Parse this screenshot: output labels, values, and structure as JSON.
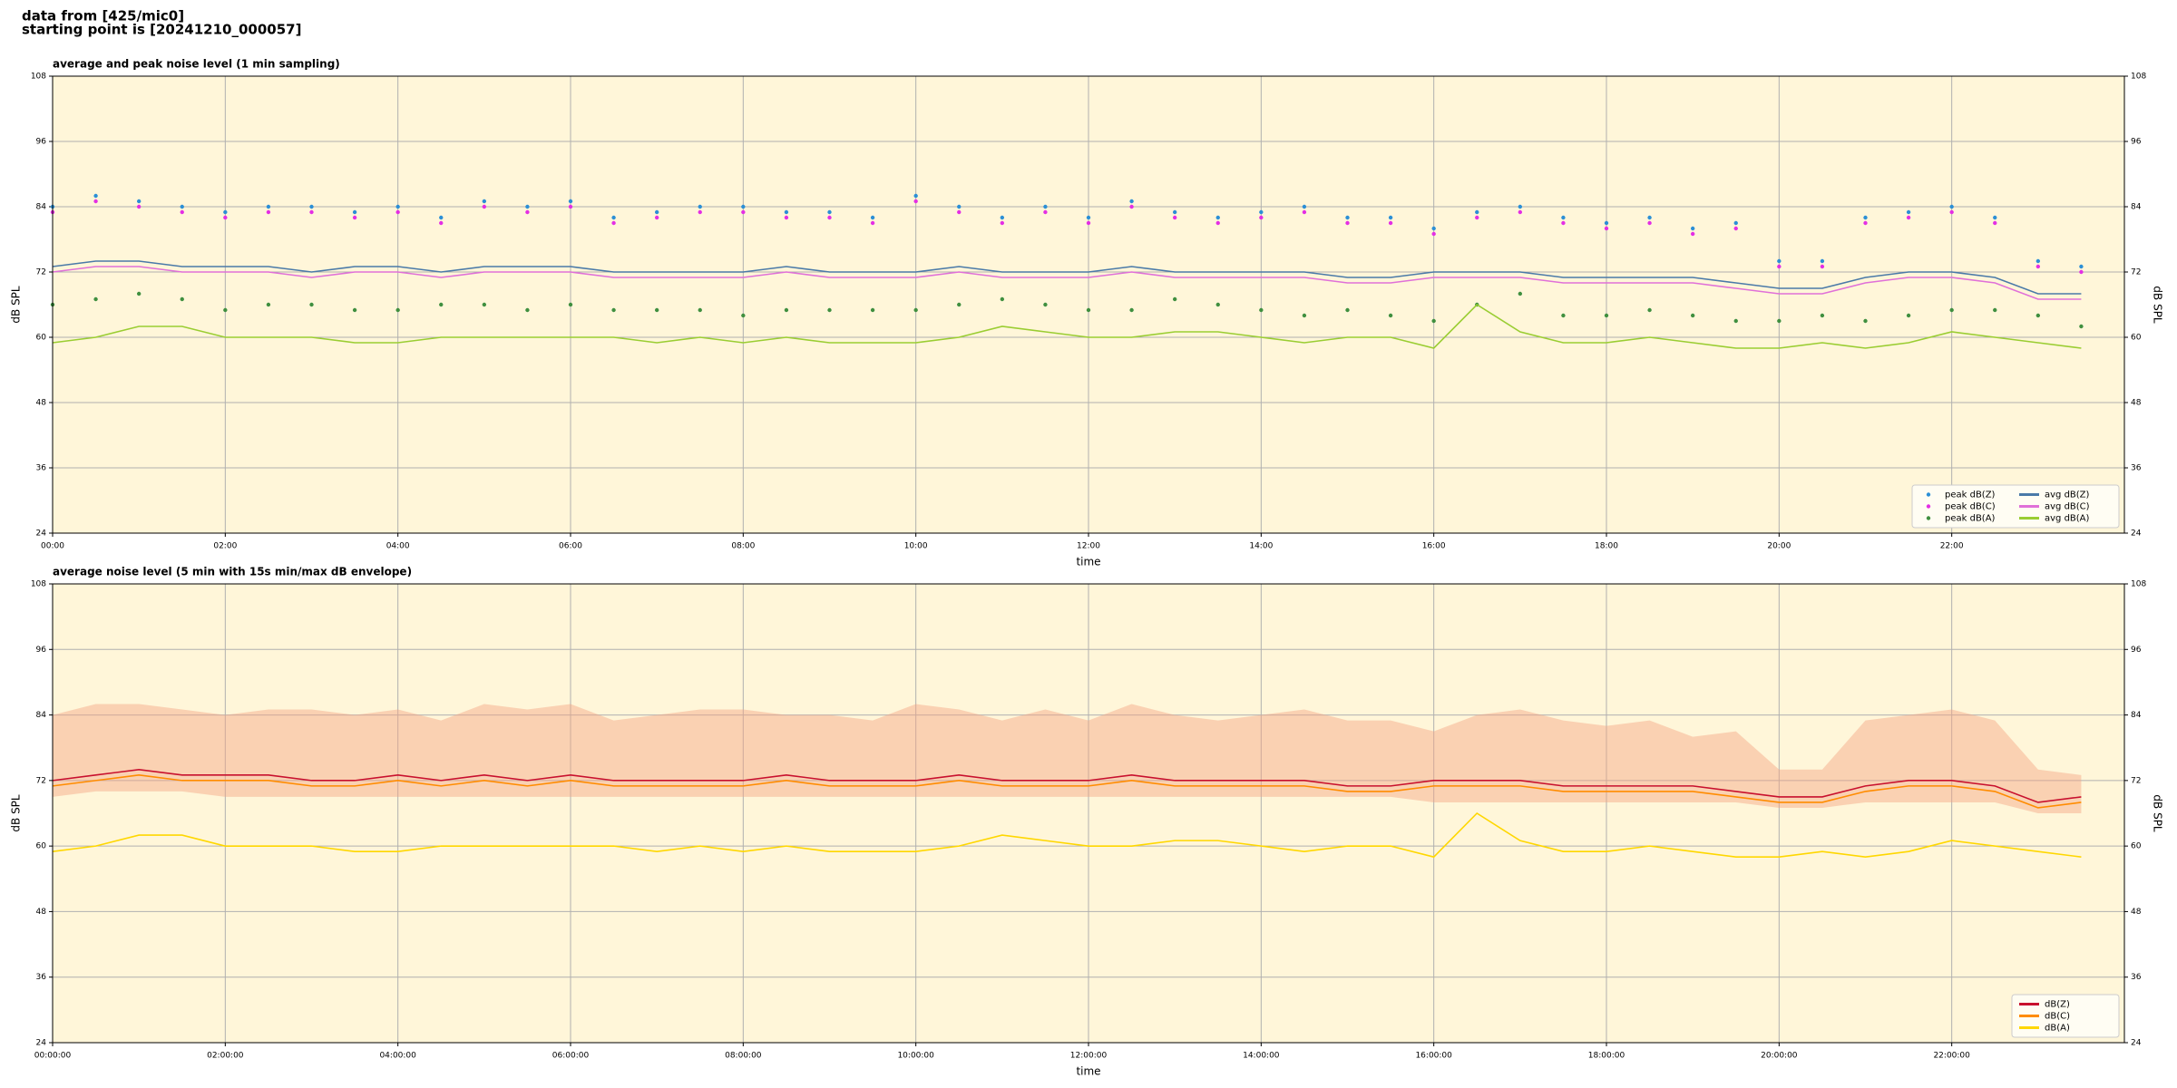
{
  "header": {
    "line1": "data from [425/mic0]",
    "line2": "starting point is [20241210_000057]"
  },
  "chart_data": [
    {
      "type": "line",
      "title": "average and peak noise level (1 min sampling)",
      "xlabel": "time",
      "ylabel": "dB SPL",
      "xlim": [
        0,
        24
      ],
      "ylim": [
        24,
        108
      ],
      "xticks": [
        {
          "value": 0,
          "label": "00:00"
        },
        {
          "value": 2,
          "label": "02:00"
        },
        {
          "value": 4,
          "label": "04:00"
        },
        {
          "value": 6,
          "label": "06:00"
        },
        {
          "value": 8,
          "label": "08:00"
        },
        {
          "value": 10,
          "label": "10:00"
        },
        {
          "value": 12,
          "label": "12:00"
        },
        {
          "value": 14,
          "label": "14:00"
        },
        {
          "value": 16,
          "label": "16:00"
        },
        {
          "value": 18,
          "label": "18:00"
        },
        {
          "value": 20,
          "label": "20:00"
        },
        {
          "value": 22,
          "label": "22:00"
        }
      ],
      "yticks": [
        24,
        36,
        48,
        60,
        72,
        84,
        96,
        108
      ],
      "grid": true,
      "legend": "lower right",
      "legend_columns": 2,
      "x": [
        0,
        0.5,
        1,
        1.5,
        2,
        2.5,
        3,
        3.5,
        4,
        4.5,
        5,
        5.5,
        6,
        6.5,
        7,
        7.5,
        8,
        8.5,
        9,
        9.5,
        10,
        10.5,
        11,
        11.5,
        12,
        12.5,
        13,
        13.5,
        14,
        14.5,
        15,
        15.5,
        16,
        16.5,
        17,
        17.5,
        18,
        18.5,
        19,
        19.5,
        20,
        20.5,
        21,
        21.5,
        22,
        22.5,
        23,
        23.5
      ],
      "series": [
        {
          "name": "peak dB(Z)",
          "style": "dots",
          "color": "#2b8fd6",
          "values": [
            84,
            86,
            85,
            84,
            83,
            84,
            84,
            83,
            84,
            82,
            85,
            84,
            85,
            82,
            83,
            84,
            84,
            83,
            83,
            82,
            86,
            84,
            82,
            84,
            82,
            85,
            83,
            82,
            83,
            84,
            82,
            82,
            80,
            83,
            84,
            82,
            81,
            82,
            80,
            81,
            74,
            74,
            82,
            83,
            84,
            82,
            74,
            73
          ]
        },
        {
          "name": "peak dB(C)",
          "style": "dots",
          "color": "#e42ee4",
          "values": [
            83,
            85,
            84,
            83,
            82,
            83,
            83,
            82,
            83,
            81,
            84,
            83,
            84,
            81,
            82,
            83,
            83,
            82,
            82,
            81,
            85,
            83,
            81,
            83,
            81,
            84,
            82,
            81,
            82,
            83,
            81,
            81,
            79,
            82,
            83,
            81,
            80,
            81,
            79,
            80,
            73,
            73,
            81,
            82,
            83,
            81,
            73,
            72
          ]
        },
        {
          "name": "peak dB(A)",
          "style": "dots",
          "color": "#3f8f3f",
          "values": [
            66,
            67,
            68,
            67,
            65,
            66,
            66,
            65,
            65,
            66,
            66,
            65,
            66,
            65,
            65,
            65,
            64,
            65,
            65,
            65,
            65,
            66,
            67,
            66,
            65,
            65,
            67,
            66,
            65,
            64,
            65,
            64,
            63,
            66,
            68,
            64,
            64,
            65,
            64,
            63,
            63,
            64,
            63,
            64,
            65,
            65,
            64,
            62
          ]
        },
        {
          "name": "avg dB(Z)",
          "style": "line",
          "color": "#4a7aa8",
          "values": [
            73,
            74,
            74,
            73,
            73,
            73,
            72,
            73,
            73,
            72,
            73,
            73,
            73,
            72,
            72,
            72,
            72,
            73,
            72,
            72,
            72,
            73,
            72,
            72,
            72,
            73,
            72,
            72,
            72,
            72,
            71,
            71,
            72,
            72,
            72,
            71,
            71,
            71,
            71,
            70,
            69,
            69,
            71,
            72,
            72,
            71,
            68,
            68
          ]
        },
        {
          "name": "avg dB(C)",
          "style": "line",
          "color": "#e070d8",
          "values": [
            72,
            73,
            73,
            72,
            72,
            72,
            71,
            72,
            72,
            71,
            72,
            72,
            72,
            71,
            71,
            71,
            71,
            72,
            71,
            71,
            71,
            72,
            71,
            71,
            71,
            72,
            71,
            71,
            71,
            71,
            70,
            70,
            71,
            71,
            71,
            70,
            70,
            70,
            70,
            69,
            68,
            68,
            70,
            71,
            71,
            70,
            67,
            67
          ]
        },
        {
          "name": "avg dB(A)",
          "style": "line",
          "color": "#9acd32",
          "values": [
            59,
            60,
            62,
            62,
            60,
            60,
            60,
            59,
            59,
            60,
            60,
            60,
            60,
            60,
            59,
            60,
            59,
            60,
            59,
            59,
            59,
            60,
            62,
            61,
            60,
            60,
            61,
            61,
            60,
            59,
            60,
            60,
            58,
            66,
            61,
            59,
            59,
            60,
            59,
            58,
            58,
            59,
            58,
            59,
            61,
            60,
            59,
            58
          ]
        }
      ]
    },
    {
      "type": "line",
      "title": "average noise level (5 min with 15s min/max dB envelope)",
      "xlabel": "time",
      "ylabel": "dB SPL",
      "xlim": [
        0,
        24
      ],
      "ylim": [
        24,
        108
      ],
      "xticks": [
        {
          "value": 0,
          "label": "00:00:00"
        },
        {
          "value": 2,
          "label": "02:00:00"
        },
        {
          "value": 4,
          "label": "04:00:00"
        },
        {
          "value": 6,
          "label": "06:00:00"
        },
        {
          "value": 8,
          "label": "08:00:00"
        },
        {
          "value": 10,
          "label": "10:00:00"
        },
        {
          "value": 12,
          "label": "12:00:00"
        },
        {
          "value": 14,
          "label": "14:00:00"
        },
        {
          "value": 16,
          "label": "16:00:00"
        },
        {
          "value": 18,
          "label": "18:00:00"
        },
        {
          "value": 20,
          "label": "20:00:00"
        },
        {
          "value": 22,
          "label": "22:00:00"
        }
      ],
      "yticks": [
        24,
        36,
        48,
        60,
        72,
        84,
        96,
        108
      ],
      "grid": true,
      "legend": "lower right",
      "legend_columns": 1,
      "x": [
        0,
        0.5,
        1,
        1.5,
        2,
        2.5,
        3,
        3.5,
        4,
        4.5,
        5,
        5.5,
        6,
        6.5,
        7,
        7.5,
        8,
        8.5,
        9,
        9.5,
        10,
        10.5,
        11,
        11.5,
        12,
        12.5,
        13,
        13.5,
        14,
        14.5,
        15,
        15.5,
        16,
        16.5,
        17,
        17.5,
        18,
        18.5,
        19,
        19.5,
        20,
        20.5,
        21,
        21.5,
        22,
        22.5,
        23,
        23.5
      ],
      "envelope": {
        "color": "#f4a582",
        "min": [
          69,
          70,
          70,
          70,
          69,
          69,
          69,
          69,
          69,
          69,
          69,
          69,
          69,
          69,
          69,
          69,
          69,
          69,
          69,
          69,
          69,
          69,
          69,
          69,
          69,
          69,
          69,
          69,
          69,
          69,
          69,
          69,
          68,
          68,
          68,
          68,
          68,
          68,
          68,
          68,
          67,
          67,
          68,
          68,
          68,
          68,
          66,
          66
        ],
        "max": [
          84,
          86,
          86,
          85,
          84,
          85,
          85,
          84,
          85,
          83,
          86,
          85,
          86,
          83,
          84,
          85,
          85,
          84,
          84,
          83,
          86,
          85,
          83,
          85,
          83,
          86,
          84,
          83,
          84,
          85,
          83,
          83,
          81,
          84,
          85,
          83,
          82,
          83,
          80,
          81,
          74,
          74,
          83,
          84,
          85,
          83,
          74,
          73
        ]
      },
      "series": [
        {
          "name": "dB(Z)",
          "style": "line",
          "color": "#c8102e",
          "values": [
            72,
            73,
            74,
            73,
            73,
            73,
            72,
            72,
            73,
            72,
            73,
            72,
            73,
            72,
            72,
            72,
            72,
            73,
            72,
            72,
            72,
            73,
            72,
            72,
            72,
            73,
            72,
            72,
            72,
            72,
            71,
            71,
            72,
            72,
            72,
            71,
            71,
            71,
            71,
            70,
            69,
            69,
            71,
            72,
            72,
            71,
            68,
            69
          ]
        },
        {
          "name": "dB(C)",
          "style": "line",
          "color": "#ff8c00",
          "values": [
            71,
            72,
            73,
            72,
            72,
            72,
            71,
            71,
            72,
            71,
            72,
            71,
            72,
            71,
            71,
            71,
            71,
            72,
            71,
            71,
            71,
            72,
            71,
            71,
            71,
            72,
            71,
            71,
            71,
            71,
            70,
            70,
            71,
            71,
            71,
            70,
            70,
            70,
            70,
            69,
            68,
            68,
            70,
            71,
            71,
            70,
            67,
            68
          ]
        },
        {
          "name": "dB(A)",
          "style": "line",
          "color": "#ffd700",
          "values": [
            59,
            60,
            62,
            62,
            60,
            60,
            60,
            59,
            59,
            60,
            60,
            60,
            60,
            60,
            59,
            60,
            59,
            60,
            59,
            59,
            59,
            60,
            62,
            61,
            60,
            60,
            61,
            61,
            60,
            59,
            60,
            60,
            58,
            66,
            61,
            59,
            59,
            60,
            59,
            58,
            58,
            59,
            58,
            59,
            61,
            60,
            59,
            58
          ]
        }
      ]
    }
  ]
}
